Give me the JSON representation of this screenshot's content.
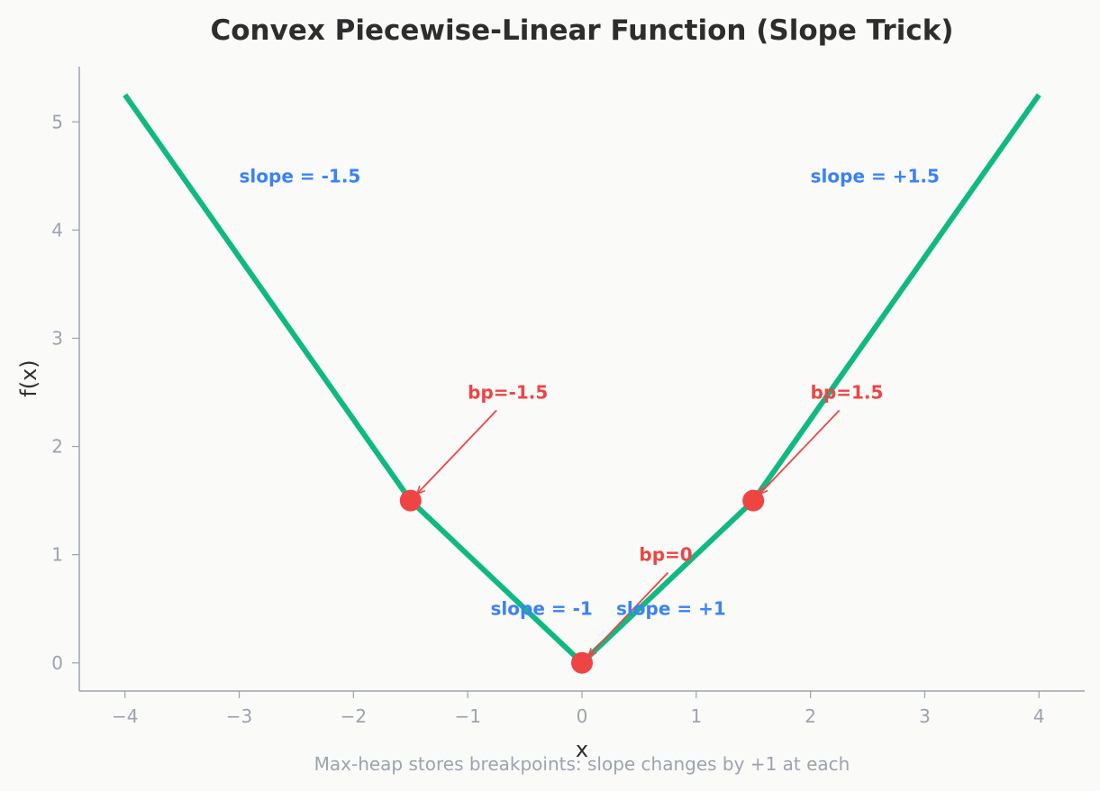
{
  "chart_data": {
    "type": "line",
    "title": "Convex Piecewise-Linear Function (Slope Trick)",
    "xlabel": "x",
    "ylabel": "f(x)",
    "caption": "Max-heap stores breakpoints: slope changes by +1 at each",
    "xlim": [
      -4.4,
      4.4
    ],
    "ylim": [
      -0.26,
      5.51
    ],
    "x_ticks": [
      -4,
      -3,
      -2,
      -1,
      0,
      1,
      2,
      3,
      4
    ],
    "x_tick_labels": [
      "−4",
      "−3",
      "−2",
      "−1",
      "0",
      "1",
      "2",
      "3",
      "4"
    ],
    "y_ticks": [
      0,
      1,
      2,
      3,
      4,
      5
    ],
    "y_tick_labels": [
      "0",
      "1",
      "2",
      "3",
      "4",
      "5"
    ],
    "grid": false,
    "series": [
      {
        "color": "#10b981",
        "x": [
          -4,
          -1.5,
          0,
          1.5,
          4
        ],
        "y": [
          5.25,
          1.5,
          0,
          1.5,
          5.25
        ]
      }
    ],
    "breakpoints": {
      "color": "#ef4444",
      "x": [
        -1.5,
        0,
        1.5
      ],
      "y": [
        1.5,
        0,
        1.5
      ]
    },
    "breakpoint_labels": [
      {
        "text": "bp=-1.5",
        "x": -1.0,
        "y": 2.5,
        "target_x": -1.5,
        "target_y": 1.5
      },
      {
        "text": "bp=0",
        "x": 0.5,
        "y": 1.0,
        "target_x": 0,
        "target_y": 0
      },
      {
        "text": "bp=1.5",
        "x": 2.0,
        "y": 2.5,
        "target_x": 1.5,
        "target_y": 1.5
      }
    ],
    "slope_labels": [
      {
        "text": "slope = -1.5",
        "x": -3.0,
        "y": 4.5
      },
      {
        "text": "slope = -1",
        "x": -0.8,
        "y": 0.5
      },
      {
        "text": "slope = +1",
        "x": 0.3,
        "y": 0.5
      },
      {
        "text": "slope = +1.5",
        "x": 2.0,
        "y": 4.5
      }
    ],
    "colors": {
      "annotation": "#ef4444",
      "slope_text": "#3b82f6",
      "axis": "#9ca3af",
      "title": "#2d2d2d"
    }
  }
}
